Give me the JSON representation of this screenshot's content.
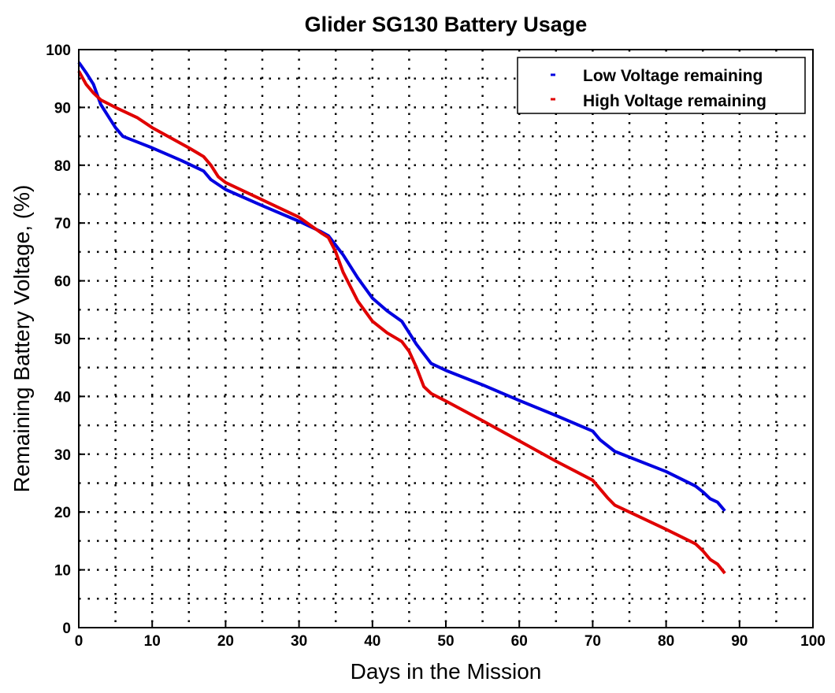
{
  "chart_data": {
    "type": "line",
    "title": "Glider SG130 Battery Usage",
    "xlabel": "Days in the Mission",
    "ylabel": "Remaining Battery Voltage, (%)",
    "xlim": [
      0,
      100
    ],
    "ylim": [
      0,
      100
    ],
    "xticks": [
      0,
      10,
      20,
      30,
      40,
      50,
      60,
      70,
      80,
      90,
      100
    ],
    "yticks": [
      0,
      10,
      20,
      30,
      40,
      50,
      60,
      70,
      80,
      90,
      100
    ],
    "grid": true,
    "legend_position": "top-right",
    "series": [
      {
        "name": "Low Voltage remaining",
        "color": "#0000e0",
        "x": [
          0,
          1,
          2,
          3,
          4,
          5,
          6,
          8,
          10,
          14,
          17,
          18,
          20,
          25,
          30,
          33,
          34,
          36,
          38,
          40,
          42,
          44,
          46,
          48,
          50,
          55,
          60,
          65,
          70,
          71,
          73,
          75,
          80,
          84,
          85,
          86,
          87,
          88
        ],
        "y": [
          97.8,
          96,
          94,
          90.5,
          88.5,
          86.5,
          85,
          84,
          83,
          80.8,
          79,
          77.5,
          75.8,
          73,
          70.3,
          68.5,
          67.8,
          64.5,
          60.5,
          57,
          54.8,
          53,
          49,
          45.7,
          44.5,
          42,
          39.3,
          36.7,
          34,
          32.5,
          30.5,
          29.5,
          27,
          24.5,
          23.5,
          22.3,
          21.7,
          20.2
        ]
      },
      {
        "name": "High Voltage remaining",
        "color": "#e00000",
        "x": [
          0,
          1,
          2,
          3,
          5,
          8,
          10,
          15,
          17,
          18,
          19,
          20,
          25,
          30,
          33,
          34,
          35,
          36,
          38,
          40,
          42,
          44,
          45,
          46,
          47,
          48,
          50,
          55,
          60,
          65,
          70,
          71,
          72,
          73,
          75,
          80,
          84,
          85,
          86,
          87,
          88
        ],
        "y": [
          96.3,
          94,
          92.5,
          91.3,
          90,
          88.2,
          86.5,
          83,
          81.5,
          80,
          78,
          77,
          74,
          71,
          68.3,
          67.5,
          65,
          61.5,
          56.5,
          53,
          51,
          49.5,
          47.8,
          45,
          41.7,
          40.5,
          39.2,
          35.8,
          32.3,
          28.8,
          25.5,
          24,
          22.5,
          21.2,
          20,
          17,
          14.5,
          13.3,
          11.8,
          11,
          9.4
        ]
      }
    ]
  }
}
